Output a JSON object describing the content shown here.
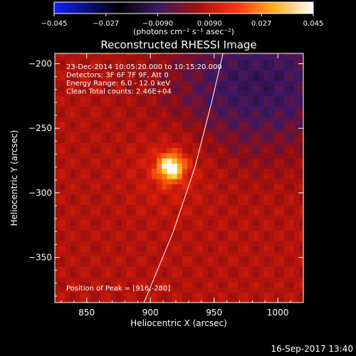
{
  "chart_data": {
    "type": "heatmap",
    "title": "Reconstructed RHESSI Image",
    "xlabel": "Heliocentric X (arcsec)",
    "ylabel": "Heliocentric Y (arcsec)",
    "xlim": [
      825,
      1020
    ],
    "ylim": [
      -385,
      -192
    ],
    "xticks": [
      850,
      900,
      950,
      1000
    ],
    "yticks": [
      -200,
      -250,
      -300,
      -350
    ],
    "colorbar": {
      "label": "(photons cm⁻² s⁻¹ asec⁻²)",
      "range": [
        -0.045,
        0.045
      ],
      "ticks": [
        "−0.045",
        "−0.027",
        "−0.0090",
        "0.0090",
        "0.027",
        "0.045"
      ],
      "colormap": "rainbow-to-hot"
    },
    "annotations": [
      "23-Dec-2014 10:05:20.000 to 10:15:20.000",
      "Detectors: 3F 6F 7F 9F, Att 0",
      "Energy Range: 6.0 - 12.0 keV",
      "Clean    Total counts: 2.46E+04"
    ],
    "peak_text": "Position of Peak = [916,-280]",
    "peak": {
      "x": 916,
      "y": -280,
      "value": 0.045
    },
    "limb": [
      [
        895,
        -385
      ],
      [
        918,
        -330
      ],
      [
        935,
        -280
      ],
      [
        948,
        -230
      ],
      [
        957,
        -192
      ]
    ],
    "background_level": 0.01,
    "negative_region_level": -0.006
  },
  "footer": {
    "timestamp": "16-Sep-2017 13:40"
  }
}
